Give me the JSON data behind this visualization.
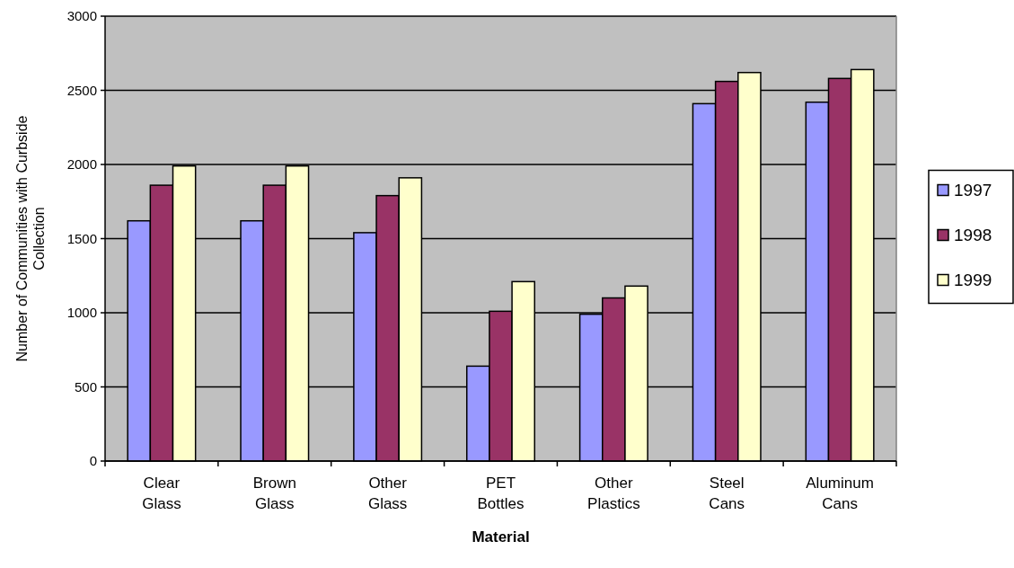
{
  "chart_data": {
    "type": "bar",
    "xlabel": "Material",
    "ylabel": "Number of Communities with Curbside Collection",
    "categories": [
      "Clear Glass",
      "Brown Glass",
      "Other Glass",
      "PET Bottles",
      "Other Plastics",
      "Steel Cans",
      "Aluminum Cans"
    ],
    "series": [
      {
        "name": "1997",
        "color": "#9999ff",
        "values": [
          1620,
          1620,
          1540,
          640,
          990,
          2410,
          2420
        ]
      },
      {
        "name": "1998",
        "color": "#993366",
        "values": [
          1860,
          1860,
          1790,
          1010,
          1100,
          2560,
          2580
        ]
      },
      {
        "name": "1999",
        "color": "#ffffcc",
        "values": [
          1990,
          1990,
          1910,
          1210,
          1180,
          2620,
          2640
        ]
      }
    ],
    "ylim": [
      0,
      3000
    ],
    "yticks": [
      0,
      500,
      1000,
      1500,
      2000,
      2500,
      3000
    ],
    "grid": "y",
    "legend": "right"
  }
}
